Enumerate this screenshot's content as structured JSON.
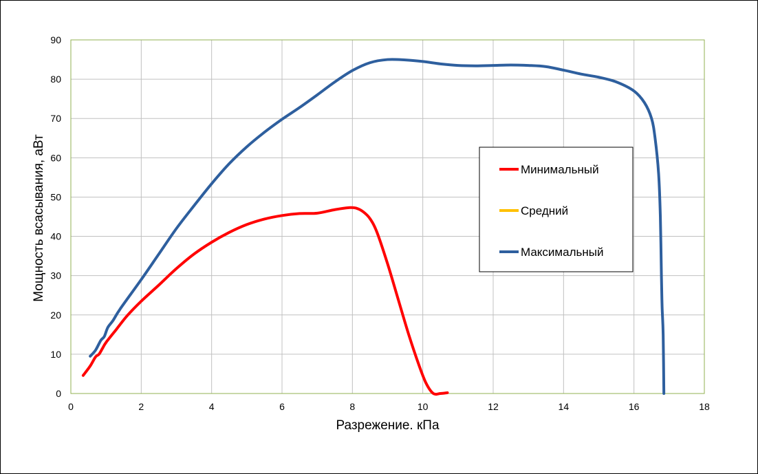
{
  "chart_data": {
    "type": "line",
    "title": "",
    "xlabel": "Разрежение. кПа",
    "ylabel": "Мощность всасывания, аВт",
    "xlim": [
      0,
      18
    ],
    "ylim": [
      0,
      90
    ],
    "xticks": [
      0,
      2,
      4,
      6,
      8,
      10,
      12,
      14,
      16,
      18
    ],
    "yticks": [
      0,
      10,
      20,
      30,
      40,
      50,
      60,
      70,
      80,
      90
    ],
    "grid": true,
    "legend_position": "right",
    "series": [
      {
        "name": "Минимальный",
        "color": "#ff0000",
        "points": [
          [
            0.35,
            4.6
          ],
          [
            0.55,
            7.0
          ],
          [
            0.7,
            9.3
          ],
          [
            0.8,
            10.0
          ],
          [
            0.9,
            11.5
          ],
          [
            1.0,
            13.0
          ],
          [
            1.3,
            16.4
          ],
          [
            1.6,
            19.8
          ],
          [
            2.0,
            23.5
          ],
          [
            2.5,
            27.6
          ],
          [
            3.0,
            31.8
          ],
          [
            3.5,
            35.5
          ],
          [
            4.0,
            38.5
          ],
          [
            4.5,
            41.0
          ],
          [
            5.0,
            43.0
          ],
          [
            5.5,
            44.4
          ],
          [
            6.0,
            45.3
          ],
          [
            6.5,
            45.8
          ],
          [
            7.0,
            45.9
          ],
          [
            7.5,
            46.8
          ],
          [
            7.9,
            47.3
          ],
          [
            8.1,
            47.2
          ],
          [
            8.3,
            46.3
          ],
          [
            8.5,
            44.5
          ],
          [
            8.7,
            41.0
          ],
          [
            9.0,
            33.0
          ],
          [
            9.3,
            24.0
          ],
          [
            9.6,
            15.0
          ],
          [
            9.9,
            7.0
          ],
          [
            10.1,
            2.5
          ],
          [
            10.3,
            0.0
          ],
          [
            10.5,
            0.0
          ],
          [
            10.7,
            0.2
          ]
        ]
      },
      {
        "name": "Средний",
        "color": "#ffc000",
        "points": []
      },
      {
        "name": "Максимальный",
        "color": "#2e5f9e",
        "points": [
          [
            0.55,
            9.5
          ],
          [
            0.7,
            11.0
          ],
          [
            0.85,
            13.5
          ],
          [
            0.95,
            14.5
          ],
          [
            1.05,
            16.8
          ],
          [
            1.2,
            18.6
          ],
          [
            1.4,
            21.5
          ],
          [
            2.0,
            29.0
          ],
          [
            2.5,
            35.5
          ],
          [
            3.0,
            42.0
          ],
          [
            3.5,
            47.8
          ],
          [
            4.0,
            53.4
          ],
          [
            4.5,
            58.5
          ],
          [
            5.0,
            62.8
          ],
          [
            5.5,
            66.5
          ],
          [
            6.0,
            69.8
          ],
          [
            6.5,
            72.8
          ],
          [
            7.0,
            76.0
          ],
          [
            7.5,
            79.3
          ],
          [
            8.0,
            82.2
          ],
          [
            8.5,
            84.2
          ],
          [
            9.0,
            85.0
          ],
          [
            9.5,
            84.9
          ],
          [
            10.0,
            84.5
          ],
          [
            10.5,
            83.9
          ],
          [
            11.0,
            83.5
          ],
          [
            11.5,
            83.4
          ],
          [
            12.0,
            83.5
          ],
          [
            12.5,
            83.6
          ],
          [
            13.0,
            83.5
          ],
          [
            13.5,
            83.2
          ],
          [
            14.0,
            82.3
          ],
          [
            14.5,
            81.3
          ],
          [
            15.0,
            80.5
          ],
          [
            15.5,
            79.3
          ],
          [
            16.0,
            77.0
          ],
          [
            16.3,
            74.0
          ],
          [
            16.5,
            70.0
          ],
          [
            16.6,
            65.0
          ],
          [
            16.7,
            56.0
          ],
          [
            16.75,
            45.0
          ],
          [
            16.78,
            30.0
          ],
          [
            16.8,
            22.0
          ],
          [
            16.83,
            15.0
          ],
          [
            16.85,
            0.0
          ]
        ]
      }
    ]
  }
}
